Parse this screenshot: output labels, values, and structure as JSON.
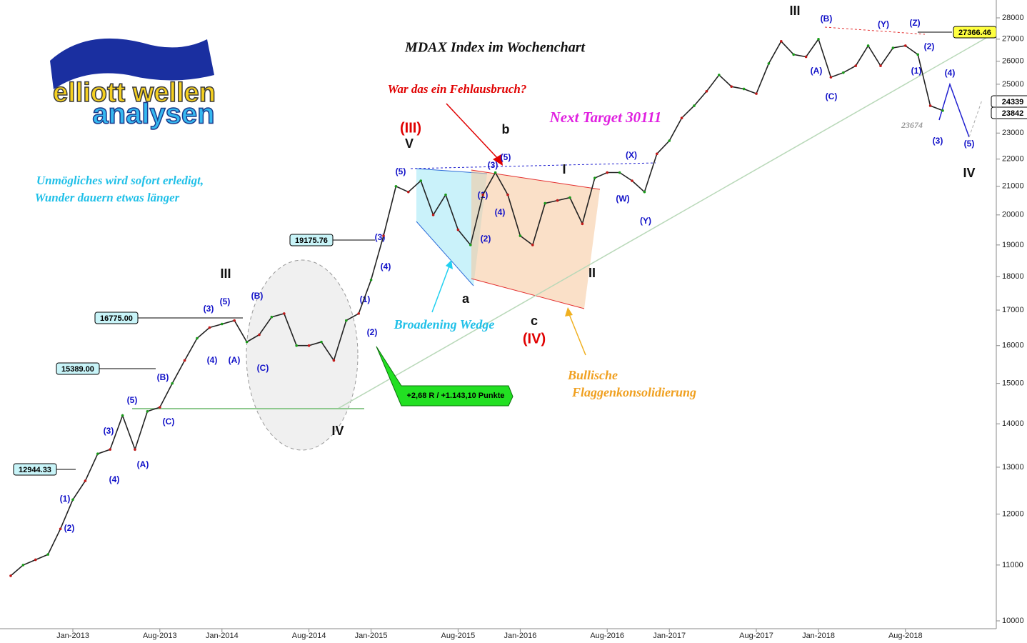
{
  "logo": {
    "line1": "elliott wellen",
    "line2": "analysen"
  },
  "chart_data": {
    "type": "line",
    "title": "MDAX Index im Wochenchart",
    "log_scale": true,
    "color": "#222222",
    "categories": [
      null,
      null,
      null,
      null,
      null,
      "Jan-2013",
      null,
      null,
      null,
      null,
      null,
      null,
      "Aug-2013",
      null,
      null,
      null,
      null,
      "Jan-2014",
      null,
      null,
      null,
      null,
      null,
      null,
      "Aug-2014",
      null,
      null,
      null,
      null,
      "Jan-2015",
      null,
      null,
      null,
      null,
      null,
      null,
      "Aug-2015",
      null,
      null,
      null,
      null,
      "Jan-2016",
      null,
      null,
      null,
      null,
      null,
      null,
      "Aug-2016",
      null,
      null,
      null,
      null,
      "Jan-2017",
      null,
      null,
      null,
      null,
      null,
      null,
      "Aug-2017",
      null,
      null,
      null,
      null,
      "Jan-2018",
      null,
      null,
      null,
      null,
      null,
      null,
      "Aug-2018",
      null,
      null,
      null
    ],
    "values": [
      10800,
      11000,
      11100,
      11200,
      11700,
      12300,
      12700,
      13300,
      13400,
      14200,
      13400,
      14300,
      14400,
      15000,
      15600,
      16200,
      16500,
      16600,
      16700,
      16100,
      16300,
      16800,
      16900,
      16000,
      16000,
      16100,
      15600,
      16700,
      16900,
      17900,
      19300,
      21000,
      20800,
      21200,
      20000,
      20700,
      19500,
      19000,
      20700,
      21500,
      20700,
      19300,
      19000,
      20400,
      20500,
      20600,
      19700,
      21300,
      21500,
      21500,
      21200,
      20800,
      22200,
      22700,
      23600,
      24100,
      24700,
      25400,
      24900,
      24800,
      24600,
      25900,
      26900,
      26300,
      26200,
      27000,
      25300,
      25500,
      25800,
      26700,
      25800,
      26600,
      26700,
      26300,
      24100,
      23900
    ],
    "ylim": [
      10000,
      28000
    ],
    "yticks": [
      10000,
      11000,
      12000,
      13000,
      14000,
      15000,
      16000,
      17000,
      18000,
      19000,
      20000,
      21000,
      22000,
      23000,
      24000,
      25000,
      26000,
      27000,
      28000
    ],
    "price_labels": [
      "27366.46",
      "24339",
      "23842",
      "19175.76",
      "16775.00",
      "15389.00",
      "12944.33"
    ],
    "annotations": [
      "War das ein Fehlausbruch?",
      "Next Target 30111",
      "Unmögliches wird sofort erledigt,",
      "Wunder dauern etwas länger",
      "Broadening Wedge",
      "Bullische",
      "Flaggenkonsolidierung",
      "+2,68 R / +1.143,10 Punkte",
      "23674"
    ],
    "wave_labels": [
      "III",
      "IV",
      "(III)",
      "V",
      "a",
      "b",
      "c",
      "(IV)",
      "I",
      "II",
      "III",
      "IV",
      "(1)",
      "(2)",
      "(3)",
      "(4)",
      "(5)",
      "(A)",
      "(B)",
      "(C)",
      "(3)",
      "(5)",
      "(4)",
      "(A)",
      "(B)",
      "(C)",
      "(1)",
      "(2)",
      "(3)",
      "(4)",
      "(5)",
      "(1)",
      "(2)",
      "(3)",
      "(4)",
      "(5)",
      "(X)",
      "(W)",
      "(Y)",
      "(A)",
      "(B)",
      "(C)",
      "(Y)",
      "(Z)",
      "(2)",
      "(1)",
      "(3)",
      "(4)",
      "(5)"
    ]
  }
}
